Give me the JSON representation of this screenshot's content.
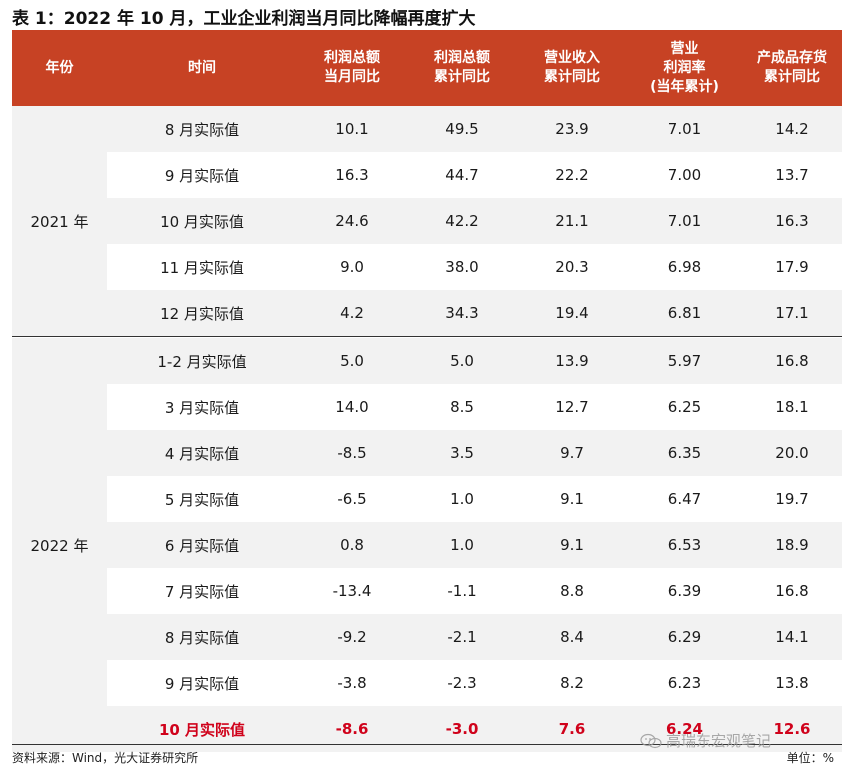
{
  "title": "表 1：2022 年 10 月，工业企业利润当月同比降幅再度扩大",
  "header": {
    "year": "年份",
    "time": "时间",
    "profit_month_l1": "利润总额",
    "profit_month_l2": "当月同比",
    "profit_cum_l1": "利润总额",
    "profit_cum_l2": "累计同比",
    "revenue_l1": "营业收入",
    "revenue_l2": "累计同比",
    "margin_l1": "营业",
    "margin_l2": "利润率",
    "margin_l3": "(当年累计)",
    "inventory_l1": "产成品存货",
    "inventory_l2": "累计同比"
  },
  "groups": [
    {
      "year": "2021 年",
      "rows": [
        {
          "time": "8 月实际值",
          "pm": "10.1",
          "pc": "49.5",
          "rev": "23.9",
          "margin": "7.01",
          "inv": "14.2"
        },
        {
          "time": "9 月实际值",
          "pm": "16.3",
          "pc": "44.7",
          "rev": "22.2",
          "margin": "7.00",
          "inv": "13.7"
        },
        {
          "time": "10 月实际值",
          "pm": "24.6",
          "pc": "42.2",
          "rev": "21.1",
          "margin": "7.01",
          "inv": "16.3"
        },
        {
          "time": "11 月实际值",
          "pm": "9.0",
          "pc": "38.0",
          "rev": "20.3",
          "margin": "6.98",
          "inv": "17.9"
        },
        {
          "time": "12 月实际值",
          "pm": "4.2",
          "pc": "34.3",
          "rev": "19.4",
          "margin": "6.81",
          "inv": "17.1"
        }
      ]
    },
    {
      "year": "2022 年",
      "rows": [
        {
          "time": "1-2 月实际值",
          "pm": "5.0",
          "pc": "5.0",
          "rev": "13.9",
          "margin": "5.97",
          "inv": "16.8"
        },
        {
          "time": "3 月实际值",
          "pm": "14.0",
          "pc": "8.5",
          "rev": "12.7",
          "margin": "6.25",
          "inv": "18.1"
        },
        {
          "time": "4 月实际值",
          "pm": "-8.5",
          "pc": "3.5",
          "rev": "9.7",
          "margin": "6.35",
          "inv": "20.0"
        },
        {
          "time": "5 月实际值",
          "pm": "-6.5",
          "pc": "1.0",
          "rev": "9.1",
          "margin": "6.47",
          "inv": "19.7"
        },
        {
          "time": "6 月实际值",
          "pm": "0.8",
          "pc": "1.0",
          "rev": "9.1",
          "margin": "6.53",
          "inv": "18.9"
        },
        {
          "time": "7 月实际值",
          "pm": "-13.4",
          "pc": "-1.1",
          "rev": "8.8",
          "margin": "6.39",
          "inv": "16.8"
        },
        {
          "time": "8 月实际值",
          "pm": "-9.2",
          "pc": "-2.1",
          "rev": "8.4",
          "margin": "6.29",
          "inv": "14.1"
        },
        {
          "time": "9 月实际值",
          "pm": "-3.8",
          "pc": "-2.3",
          "rev": "8.2",
          "margin": "6.23",
          "inv": "13.8"
        },
        {
          "time": "10 月实际值",
          "pm": "-8.6",
          "pc": "-3.0",
          "rev": "7.6",
          "margin": "6.24",
          "inv": "12.6",
          "highlight": true
        }
      ]
    }
  ],
  "footer": {
    "source": "资料来源：Wind，光大证券研究所",
    "unit": "单位：%"
  },
  "watermark": "高瑞东宏观笔记",
  "colors": {
    "header_bg": "#c74224",
    "highlight": "#d0021b",
    "stripe": "#f2f2f2"
  }
}
